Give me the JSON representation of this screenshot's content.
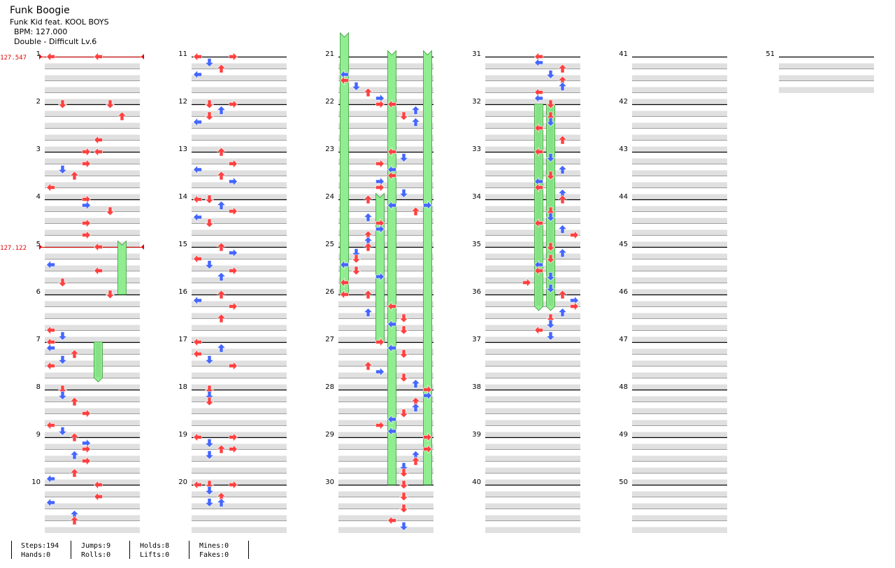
{
  "song": {
    "title": "Funk Boogie",
    "artist": "Funk Kid feat. KOOL BOYS",
    "bpm_text": "BPM: 127.000",
    "difficulty_text": "Double - Difficult  Lv.6"
  },
  "bpm_changes": [
    {
      "measure": 1,
      "label": "127.547"
    },
    {
      "measure": 5,
      "label": "127.122"
    }
  ],
  "stats": {
    "steps": "Steps:194",
    "hands": "Hands:0",
    "jumps": "Jumps:9",
    "rolls": "Rolls:0",
    "holds": "Holds:8",
    "lifts": "Lifts:0",
    "mines": "Mines:0",
    "fakes": "Fakes:0"
  },
  "colors": {
    "quarter": "#ff4040",
    "eighth": "#4466ff",
    "hold": "#90ee90",
    "bpm": "#e00000",
    "band": "#e0e0e0"
  },
  "total_measures": 51,
  "measures_per_column": 10,
  "notes": [
    [
      1,
      0,
      0
    ],
    [
      1,
      0,
      4
    ],
    [
      2,
      0,
      1
    ],
    [
      2,
      0,
      5
    ],
    [
      2,
      2,
      6
    ],
    [
      2,
      6,
      4
    ],
    [
      2,
      8,
      3
    ],
    [
      3,
      0,
      4
    ],
    [
      3,
      2,
      3
    ],
    [
      3,
      3,
      1
    ],
    [
      3,
      4,
      2
    ],
    [
      3,
      6,
      0
    ],
    [
      4,
      0,
      3
    ],
    [
      4,
      1,
      3
    ],
    [
      4,
      2,
      5
    ],
    [
      4,
      4,
      3
    ],
    [
      4,
      6,
      3
    ],
    [
      5,
      0,
      4
    ],
    [
      5,
      3,
      0
    ],
    [
      5,
      4,
      4
    ],
    [
      5,
      6,
      1
    ],
    [
      6,
      0,
      5
    ],
    [
      6,
      6,
      0
    ],
    [
      6,
      7,
      1
    ],
    [
      7,
      0,
      0
    ],
    [
      7,
      1,
      0
    ],
    [
      7,
      2,
      2
    ],
    [
      7,
      3,
      1
    ],
    [
      7,
      4,
      0
    ],
    [
      8,
      0,
      1
    ],
    [
      8,
      1,
      1
    ],
    [
      8,
      2,
      2
    ],
    [
      8,
      4,
      3
    ],
    [
      8,
      6,
      0
    ],
    [
      8,
      7,
      1
    ],
    [
      9,
      0,
      2
    ],
    [
      9,
      1,
      3
    ],
    [
      9,
      2,
      3
    ],
    [
      9,
      3,
      2
    ],
    [
      9,
      4,
      3
    ],
    [
      9,
      6,
      2
    ],
    [
      9,
      7,
      0
    ],
    [
      10,
      0,
      4
    ],
    [
      10,
      2,
      4
    ],
    [
      10,
      3,
      0
    ],
    [
      10,
      5,
      2
    ],
    [
      10,
      6,
      2
    ],
    [
      11,
      0,
      0
    ],
    [
      11,
      0,
      3
    ],
    [
      11,
      1,
      1
    ],
    [
      11,
      2,
      2
    ],
    [
      11,
      3,
      0
    ],
    [
      12,
      0,
      1
    ],
    [
      12,
      0,
      3
    ],
    [
      12,
      1,
      2
    ],
    [
      12,
      2,
      1
    ],
    [
      12,
      3,
      0
    ],
    [
      13,
      0,
      2
    ],
    [
      13,
      2,
      3
    ],
    [
      13,
      3,
      0
    ],
    [
      13,
      4,
      2
    ],
    [
      13,
      5,
      3
    ],
    [
      14,
      0,
      0
    ],
    [
      14,
      0,
      1
    ],
    [
      14,
      1,
      2
    ],
    [
      14,
      2,
      3
    ],
    [
      14,
      3,
      0
    ],
    [
      14,
      4,
      1
    ],
    [
      15,
      0,
      2
    ],
    [
      15,
      1,
      3
    ],
    [
      15,
      2,
      0
    ],
    [
      15,
      3,
      1
    ],
    [
      15,
      4,
      3
    ],
    [
      15,
      5,
      2
    ],
    [
      16,
      0,
      2
    ],
    [
      16,
      1,
      0
    ],
    [
      16,
      2,
      3
    ],
    [
      16,
      4,
      2
    ],
    [
      17,
      0,
      0
    ],
    [
      17,
      1,
      2
    ],
    [
      17,
      2,
      0
    ],
    [
      17,
      3,
      1
    ],
    [
      17,
      4,
      3
    ],
    [
      18,
      0,
      1
    ],
    [
      18,
      1,
      1
    ],
    [
      18,
      2,
      1
    ],
    [
      19,
      0,
      0
    ],
    [
      19,
      0,
      3
    ],
    [
      19,
      1,
      1
    ],
    [
      19,
      2,
      2
    ],
    [
      19,
      2,
      3
    ],
    [
      19,
      3,
      1
    ],
    [
      20,
      0,
      0
    ],
    [
      20,
      0,
      1
    ],
    [
      20,
      0,
      3
    ],
    [
      20,
      1,
      1
    ],
    [
      20,
      2,
      2
    ],
    [
      20,
      3,
      1
    ],
    [
      20,
      3,
      2
    ],
    [
      21,
      3,
      0
    ],
    [
      21,
      4,
      0
    ],
    [
      21,
      5,
      1
    ],
    [
      21,
      6,
      2
    ],
    [
      21,
      7,
      3
    ],
    [
      22,
      0,
      3
    ],
    [
      22,
      0,
      4
    ],
    [
      22,
      1,
      6
    ],
    [
      22,
      2,
      5
    ],
    [
      22,
      3,
      6
    ],
    [
      23,
      0,
      4
    ],
    [
      23,
      1,
      5
    ],
    [
      23,
      2,
      3
    ],
    [
      23,
      3,
      4
    ],
    [
      23,
      4,
      4
    ],
    [
      23,
      5,
      3
    ],
    [
      23,
      6,
      3
    ],
    [
      23,
      7,
      5
    ],
    [
      24,
      0,
      2
    ],
    [
      24,
      1,
      4
    ],
    [
      24,
      1,
      7
    ],
    [
      24,
      2,
      6
    ],
    [
      24,
      3,
      2
    ],
    [
      24,
      4,
      3
    ],
    [
      24,
      5,
      3
    ],
    [
      24,
      6,
      2
    ],
    [
      24,
      7,
      2
    ],
    [
      25,
      0,
      2
    ],
    [
      25,
      1,
      1
    ],
    [
      25,
      2,
      1
    ],
    [
      25,
      3,
      0
    ],
    [
      25,
      4,
      1
    ],
    [
      25,
      5,
      3
    ],
    [
      25,
      6,
      0
    ],
    [
      26,
      0,
      0
    ],
    [
      26,
      0,
      2
    ],
    [
      26,
      2,
      4
    ],
    [
      26,
      3,
      2
    ],
    [
      26,
      4,
      5
    ],
    [
      26,
      5,
      4
    ],
    [
      26,
      6,
      5
    ],
    [
      27,
      0,
      3
    ],
    [
      27,
      1,
      4
    ],
    [
      27,
      2,
      5
    ],
    [
      27,
      4,
      2
    ],
    [
      27,
      5,
      3
    ],
    [
      27,
      6,
      5
    ],
    [
      27,
      7,
      6
    ],
    [
      28,
      0,
      7
    ],
    [
      28,
      1,
      7
    ],
    [
      28,
      2,
      6
    ],
    [
      28,
      3,
      6
    ],
    [
      28,
      4,
      5
    ],
    [
      28,
      5,
      4
    ],
    [
      28,
      6,
      3
    ],
    [
      28,
      7,
      4
    ],
    [
      29,
      0,
      7
    ],
    [
      29,
      2,
      7
    ],
    [
      29,
      3,
      6
    ],
    [
      29,
      4,
      6
    ],
    [
      29,
      5,
      5
    ],
    [
      29,
      6,
      5
    ],
    [
      30,
      0,
      5
    ],
    [
      30,
      2,
      5
    ],
    [
      30,
      4,
      5
    ],
    [
      30,
      6,
      4
    ],
    [
      30,
      7,
      5
    ],
    [
      31,
      0,
      4
    ],
    [
      31,
      1,
      4
    ],
    [
      31,
      2,
      6
    ],
    [
      31,
      3,
      5
    ],
    [
      31,
      4,
      6
    ],
    [
      31,
      5,
      6
    ],
    [
      31,
      6,
      4
    ],
    [
      31,
      7,
      4
    ],
    [
      32,
      0,
      5
    ],
    [
      32,
      2,
      5
    ],
    [
      32,
      3,
      5
    ],
    [
      32,
      4,
      4
    ],
    [
      32,
      6,
      6
    ],
    [
      33,
      0,
      4
    ],
    [
      33,
      1,
      5
    ],
    [
      33,
      3,
      6
    ],
    [
      33,
      4,
      5
    ],
    [
      33,
      5,
      4
    ],
    [
      33,
      6,
      4
    ],
    [
      33,
      7,
      6
    ],
    [
      34,
      0,
      6
    ],
    [
      34,
      2,
      5
    ],
    [
      34,
      3,
      5
    ],
    [
      34,
      4,
      4
    ],
    [
      34,
      5,
      6
    ],
    [
      34,
      6,
      7
    ],
    [
      35,
      0,
      5
    ],
    [
      35,
      1,
      6
    ],
    [
      35,
      2,
      5
    ],
    [
      35,
      3,
      4
    ],
    [
      35,
      4,
      4
    ],
    [
      35,
      5,
      5
    ],
    [
      35,
      6,
      3
    ],
    [
      35,
      7,
      5
    ],
    [
      36,
      0,
      6
    ],
    [
      36,
      1,
      7
    ],
    [
      36,
      2,
      7
    ],
    [
      36,
      3,
      6
    ],
    [
      36,
      4,
      5
    ],
    [
      36,
      5,
      5
    ],
    [
      36,
      6,
      4
    ],
    [
      36,
      7,
      5
    ]
  ],
  "holds": [
    [
      6,
      0,
      6,
      4,
      7
    ],
    [
      7,
      0,
      4,
      7,
      6
    ],
    [
      26,
      0,
      0,
      0,
      4
    ],
    [
      27,
      0,
      3,
      3,
      7
    ],
    [
      30,
      0,
      4,
      0,
      7
    ],
    [
      30,
      0,
      7,
      0,
      7
    ],
    [
      32,
      0,
      4,
      6,
      2
    ],
    [
      32,
      0,
      5,
      6,
      2
    ]
  ]
}
